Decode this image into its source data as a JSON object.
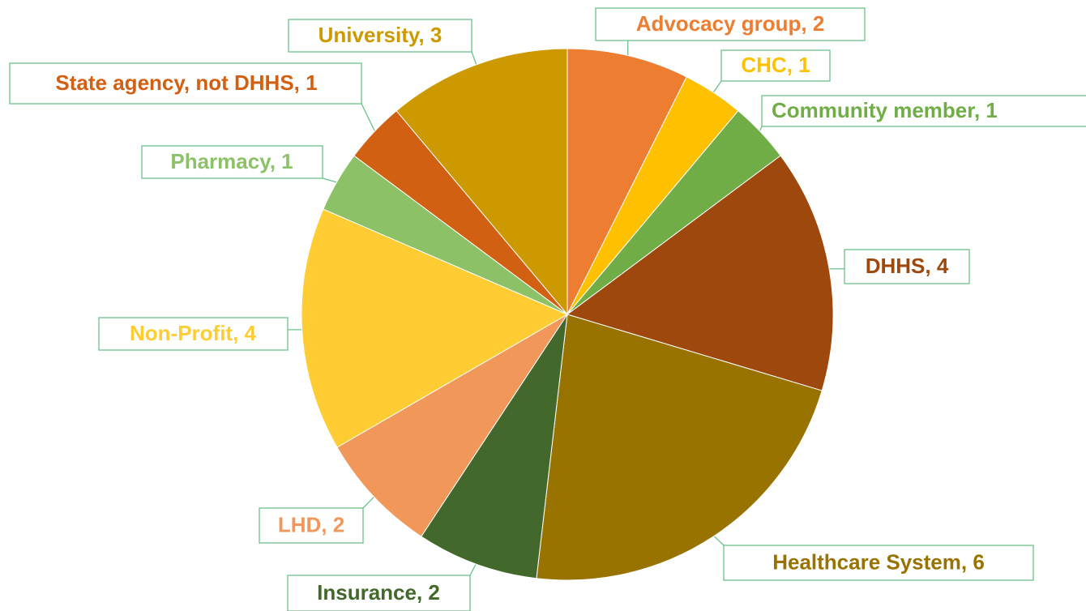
{
  "chart_data": {
    "type": "pie",
    "values": [
      2,
      1,
      1,
      4,
      6,
      2,
      2,
      4,
      1,
      1,
      3
    ],
    "value_labels": [
      "Advocacy group, 2",
      "CHC, 1",
      "Community member, 1",
      "DHHS, 4",
      "Healthcare System, 6",
      "Insurance, 2",
      "LHD, 2",
      "Non-Profit, 4",
      "Pharmacy, 1",
      "State agency, not DHHS, 1",
      "University, 3"
    ],
    "colors": [
      "#ED7D31",
      "#FFC000",
      "#70AD47",
      "#9E480E",
      "#997300",
      "#43682B",
      "#F1975A",
      "#FFCD33",
      "#8CC168",
      "#D26012",
      "#CC9A00"
    ]
  }
}
